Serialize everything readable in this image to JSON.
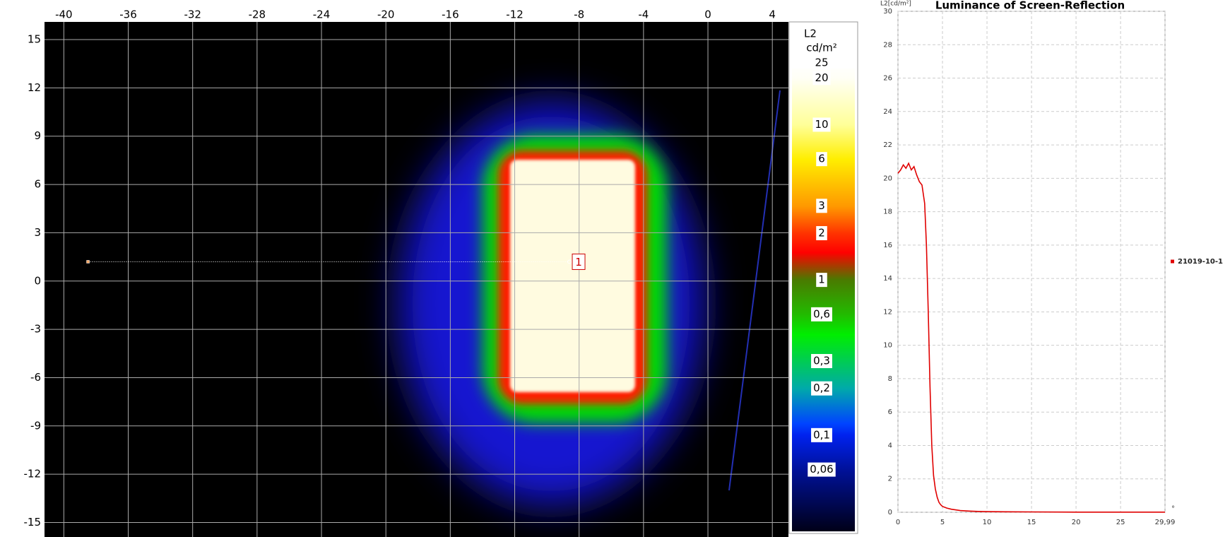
{
  "chart_data": [
    {
      "type": "heatmap",
      "xlim": [
        -41.2,
        5
      ],
      "ylim": [
        -15.9,
        16.1
      ],
      "xticks": [
        -40,
        -36,
        -32,
        -28,
        -24,
        -20,
        -16,
        -12,
        -8,
        -4,
        0,
        4
      ],
      "yticks": [
        15,
        12,
        9,
        6,
        3,
        0,
        -3,
        -6,
        -9,
        -12,
        -15
      ],
      "grid": true,
      "colorbar": {
        "title": "L2",
        "unit": "cd/m²",
        "scale": "log",
        "lim": [
          0.024,
          25
        ],
        "ticks": [
          25,
          20,
          10,
          6,
          3,
          2,
          1,
          {
            "value": 0.6,
            "label": "0,6"
          },
          {
            "value": 0.3,
            "label": "0,3"
          },
          {
            "value": 0.2,
            "label": "0,2"
          },
          {
            "value": 0.1,
            "label": "0,1"
          },
          {
            "value": 0.06,
            "label": "0,06"
          }
        ]
      },
      "profile": {
        "label": "1",
        "x": [
          -38.5,
          -8.6
        ],
        "y": [
          1.2,
          1.2
        ]
      }
    },
    {
      "type": "line",
      "title": "Luminance of Screen-Reflection",
      "ylabel": "L2[cd/m²]",
      "xunit": "°",
      "xlim": [
        0,
        29.99
      ],
      "ylim": [
        0,
        30
      ],
      "xticks": [
        0,
        5,
        10,
        15,
        20,
        25,
        {
          "value": 29.99,
          "label": "29,99"
        }
      ],
      "yticks": [
        0,
        2,
        4,
        6,
        8,
        10,
        12,
        14,
        16,
        18,
        20,
        22,
        24,
        26,
        28,
        30
      ],
      "grid": true,
      "legend": "right",
      "x": [
        0,
        0.3,
        0.6,
        0.9,
        1.2,
        1.5,
        1.8,
        2.1,
        2.4,
        2.7,
        3.0,
        3.2,
        3.4,
        3.6,
        3.8,
        4.0,
        4.2,
        4.4,
        4.6,
        4.8,
        5.0,
        5.5,
        6,
        7,
        8,
        9,
        10,
        12,
        15,
        20,
        25,
        29.99
      ],
      "series": [
        {
          "name": "21019-10-1",
          "color": "#e00000",
          "values": [
            20.3,
            20.5,
            20.8,
            20.6,
            20.9,
            20.5,
            20.7,
            20.2,
            19.8,
            19.6,
            18.5,
            16,
            12,
            7.5,
            4,
            2.2,
            1.4,
            0.9,
            0.6,
            0.45,
            0.35,
            0.25,
            0.18,
            0.1,
            0.07,
            0.05,
            0.04,
            0.03,
            0.02,
            0.01,
            0.01,
            0.01
          ]
        }
      ]
    }
  ]
}
